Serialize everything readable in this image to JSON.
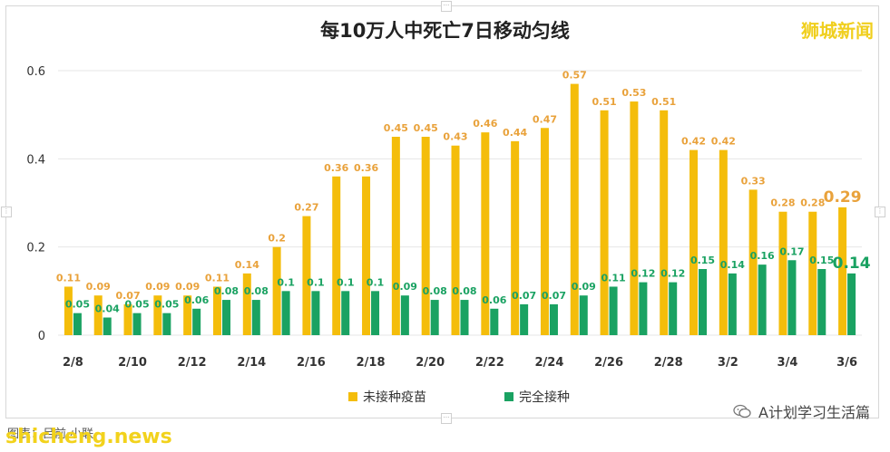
{
  "title": "每10万人中死亡7日移动匀线",
  "watermark": "狮城新闻",
  "source": "图表：吕前·小联",
  "site_watermark": "shicheng.news",
  "wechat_account": "A计划学习生活篇",
  "colors": {
    "unvaccinated": "#F4BD0B",
    "vaccinated": "#1AA262",
    "grid": "#e6e6e6"
  },
  "chart_data": {
    "type": "bar",
    "title": "每10万人中死亡7日移动匀线",
    "xlabel": "",
    "ylabel": "",
    "ylim": [
      0,
      0.6
    ],
    "yticks": [
      "0",
      "0.2",
      "0.4",
      "0.6"
    ],
    "grid": true,
    "legend": "bottom",
    "categories": [
      "2/8",
      "2/9",
      "2/10",
      "2/11",
      "2/12",
      "2/13",
      "2/14",
      "2/15",
      "2/16",
      "2/17",
      "2/18",
      "2/19",
      "2/20",
      "2/21",
      "2/22",
      "2/23",
      "2/24",
      "2/25",
      "2/26",
      "2/27",
      "2/28",
      "3/1",
      "3/2",
      "3/3",
      "3/4",
      "3/5",
      "3/6"
    ],
    "xtick_labels": [
      "2/8",
      "",
      "2/10",
      "",
      "2/12",
      "",
      "2/14",
      "",
      "2/16",
      "",
      "2/18",
      "",
      "2/20",
      "",
      "2/22",
      "",
      "2/24",
      "",
      "2/26",
      "",
      "2/28",
      "",
      "3/2",
      "",
      "3/4",
      "",
      "3/6"
    ],
    "series": [
      {
        "name": "未接种疫苗",
        "values": [
          0.11,
          0.09,
          0.07,
          0.09,
          0.09,
          0.11,
          0.14,
          0.2,
          0.27,
          0.36,
          0.36,
          0.45,
          0.45,
          0.43,
          0.46,
          0.44,
          0.47,
          0.57,
          0.51,
          0.53,
          0.51,
          0.42,
          0.42,
          0.33,
          0.28,
          0.28,
          0.29
        ]
      },
      {
        "name": "完全接种",
        "values": [
          0.05,
          0.04,
          0.05,
          0.05,
          0.06,
          0.08,
          0.08,
          0.1,
          0.1,
          0.1,
          0.1,
          0.09,
          0.08,
          0.08,
          0.06,
          0.07,
          0.07,
          0.09,
          0.11,
          0.12,
          0.12,
          0.15,
          0.14,
          0.16,
          0.17,
          0.15,
          0.14
        ]
      }
    ]
  }
}
